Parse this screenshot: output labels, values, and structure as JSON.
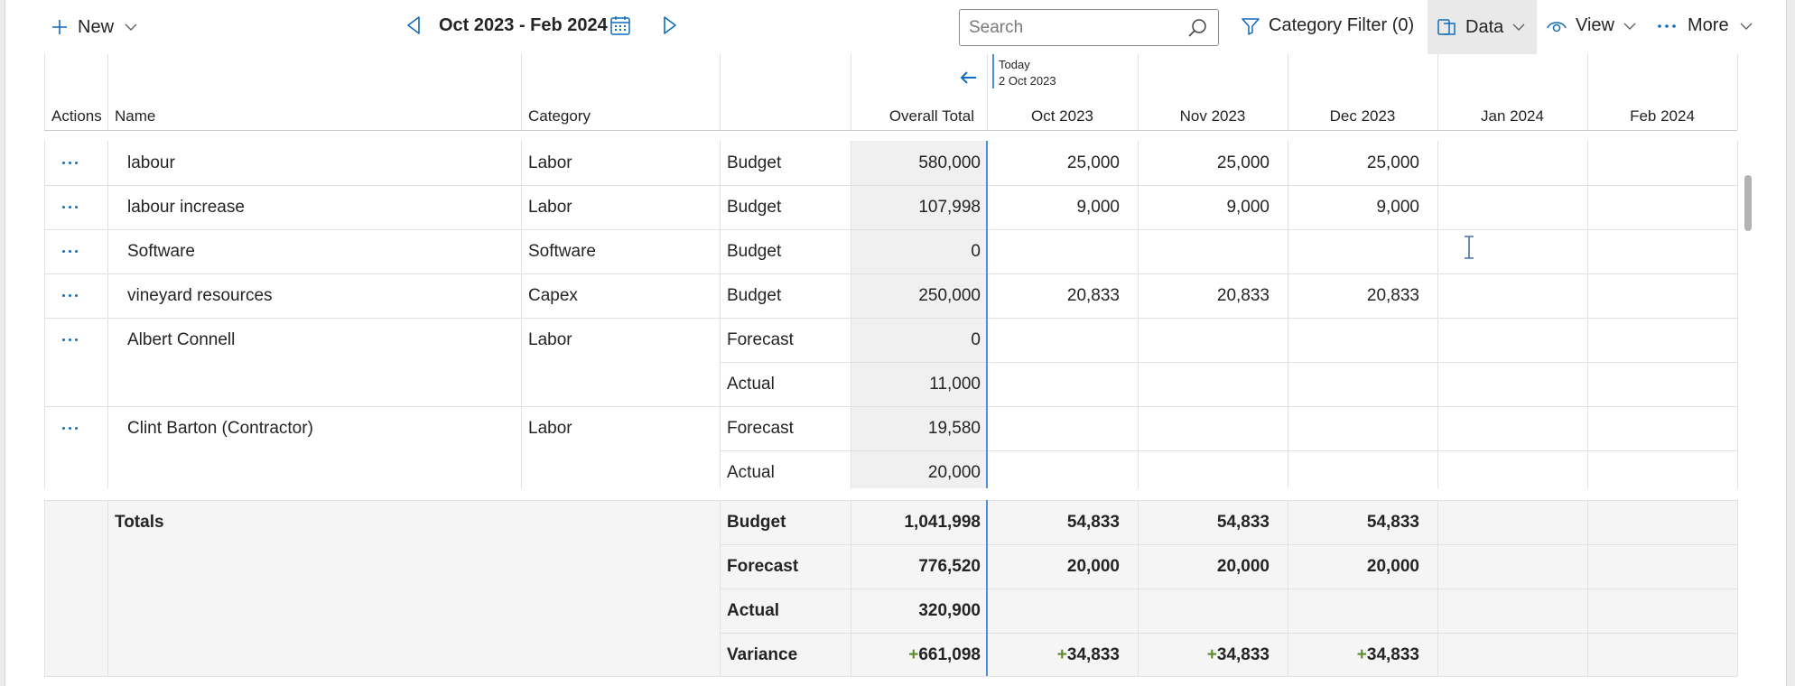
{
  "toolbar": {
    "new_label": "New",
    "period": "Oct 2023 - Feb 2024",
    "search_placeholder": "Search",
    "category_filter_label": "Category Filter (0)",
    "data_label": "Data",
    "view_label": "View",
    "more_label": "More"
  },
  "colors": {
    "accent": "#0f6cbd",
    "today_line": "#4a90d9",
    "overall_bg": "#f0f0f0",
    "variance_plus": "#5e8a2e",
    "totals_bg": "#f5f5f5"
  },
  "today": {
    "label": "Today",
    "date": "2 Oct 2023"
  },
  "columns": {
    "actions": "Actions",
    "name": "Name",
    "category": "Category",
    "type": "",
    "overall": "Overall Total",
    "months": [
      "Oct 2023",
      "Nov 2023",
      "Dec 2023",
      "Jan 2024",
      "Feb 2024"
    ]
  },
  "rows": [
    {
      "name": "labour",
      "category": "Labor",
      "lines": [
        {
          "type": "Budget",
          "overall": "580,000",
          "months": [
            "25,000",
            "25,000",
            "25,000",
            "",
            ""
          ]
        }
      ]
    },
    {
      "name": "labour increase",
      "category": "Labor",
      "lines": [
        {
          "type": "Budget",
          "overall": "107,998",
          "months": [
            "9,000",
            "9,000",
            "9,000",
            "",
            ""
          ]
        }
      ]
    },
    {
      "name": "Software",
      "category": "Software",
      "lines": [
        {
          "type": "Budget",
          "overall": "0",
          "months": [
            "",
            "",
            "",
            "",
            ""
          ]
        }
      ]
    },
    {
      "name": "vineyard resources",
      "category": "Capex",
      "lines": [
        {
          "type": "Budget",
          "overall": "250,000",
          "months": [
            "20,833",
            "20,833",
            "20,833",
            "",
            ""
          ]
        }
      ]
    },
    {
      "name": "Albert Connell",
      "category": "Labor",
      "lines": [
        {
          "type": "Forecast",
          "overall": "0",
          "months": [
            "",
            "",
            "",
            "",
            ""
          ]
        },
        {
          "type": "Actual",
          "overall": "11,000",
          "months": [
            "",
            "",
            "",
            "",
            ""
          ]
        }
      ]
    },
    {
      "name": "Clint Barton (Contractor)",
      "category": "Labor",
      "lines": [
        {
          "type": "Forecast",
          "overall": "19,580",
          "months": [
            "",
            "",
            "",
            "",
            ""
          ]
        },
        {
          "type": "Actual",
          "overall": "20,000",
          "months": [
            "",
            "",
            "",
            "",
            ""
          ]
        }
      ]
    }
  ],
  "totals": {
    "label": "Totals",
    "lines": [
      {
        "type": "Budget",
        "overall": "1,041,998",
        "months": [
          "54,833",
          "54,833",
          "54,833",
          "",
          ""
        ]
      },
      {
        "type": "Forecast",
        "overall": "776,520",
        "months": [
          "20,000",
          "20,000",
          "20,000",
          "",
          ""
        ]
      },
      {
        "type": "Actual",
        "overall": "320,900",
        "months": [
          "",
          "",
          "",
          "",
          ""
        ]
      },
      {
        "type": "Variance",
        "overall": "661,098",
        "months": [
          "34,833",
          "34,833",
          "34,833",
          "",
          ""
        ],
        "prefix": "+"
      }
    ]
  }
}
